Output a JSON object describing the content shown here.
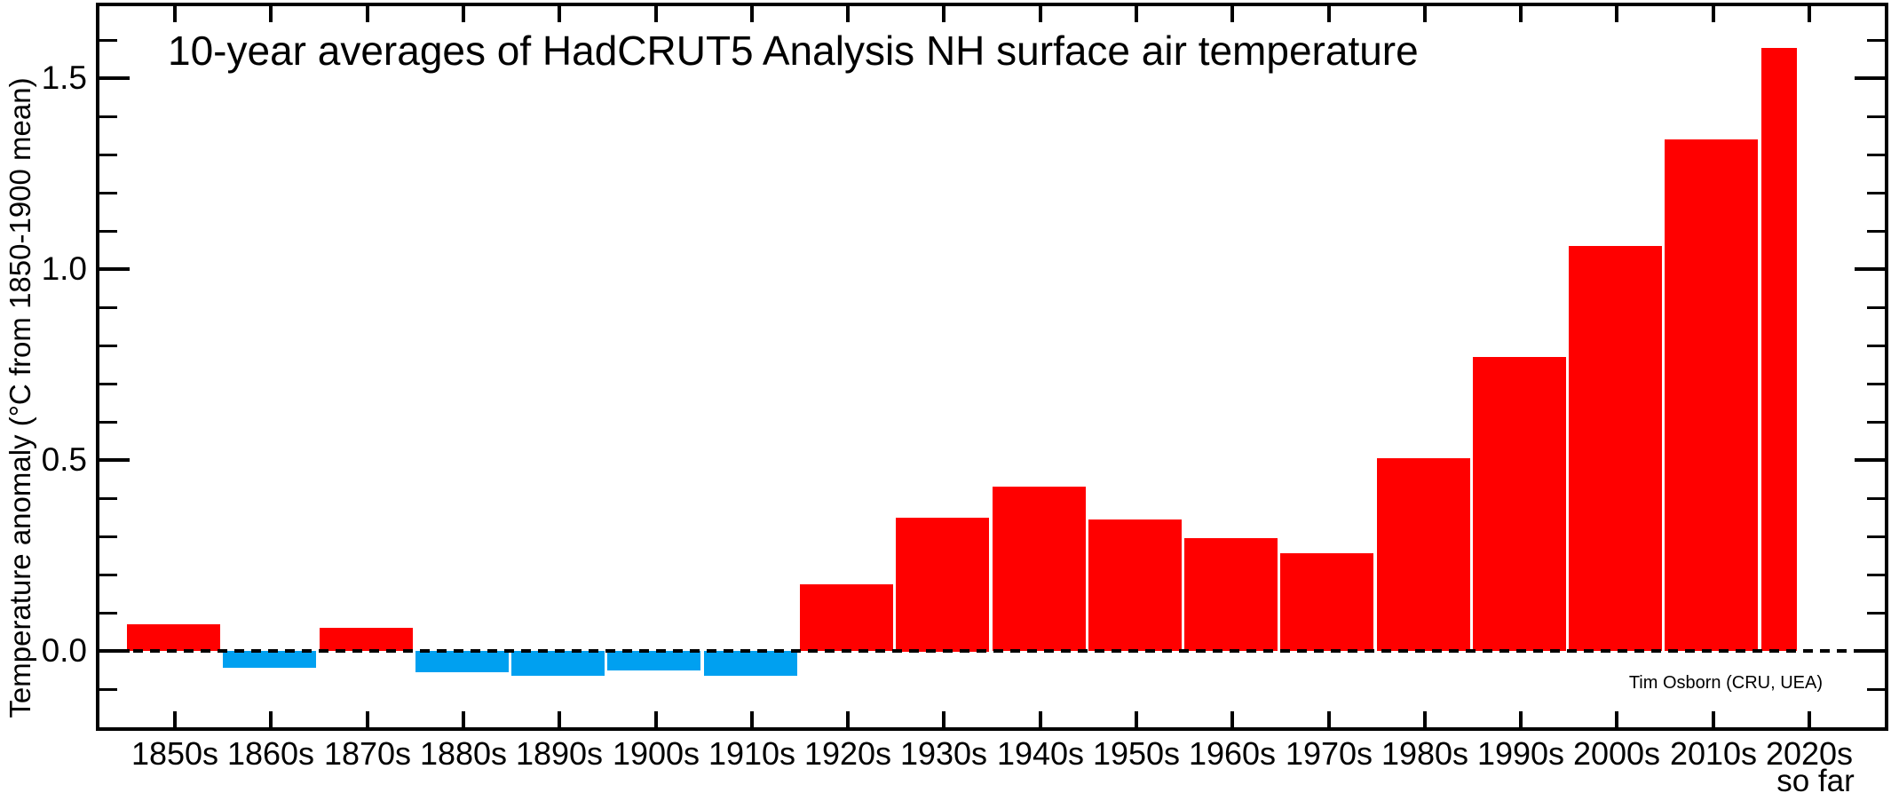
{
  "chart_data": {
    "type": "bar",
    "title": "10-year averages of HadCRUT5 Analysis NH surface air temperature",
    "ylabel": "Temperature anomaly (°C from 1850-1900 mean)",
    "xlabel": "",
    "credit": "Tim Osborn (CRU, UEA)",
    "categories": [
      "1850s",
      "1860s",
      "1870s",
      "1880s",
      "1890s",
      "1900s",
      "1910s",
      "1920s",
      "1930s",
      "1940s",
      "1950s",
      "1960s",
      "1970s",
      "1980s",
      "1990s",
      "2000s",
      "2010s",
      "2020s"
    ],
    "values": [
      0.07,
      -0.045,
      0.06,
      -0.055,
      -0.065,
      -0.05,
      -0.065,
      0.175,
      0.35,
      0.43,
      0.345,
      0.295,
      0.255,
      0.505,
      0.77,
      1.06,
      1.34,
      1.58
    ],
    "last_bar_note": "so far",
    "last_bar_partial": true,
    "ylim": [
      -0.2,
      1.69
    ],
    "yticks_major": [
      {
        "value": 0.0,
        "label": "0.0"
      },
      {
        "value": 0.5,
        "label": "0.5"
      },
      {
        "value": 1.0,
        "label": "1.0"
      },
      {
        "value": 1.5,
        "label": "1.5"
      }
    ],
    "yticks_minor": [
      -0.1,
      0.1,
      0.2,
      0.3,
      0.4,
      0.6,
      0.7,
      0.8,
      0.9,
      1.1,
      1.2,
      1.3,
      1.4,
      1.6
    ],
    "grid": false,
    "legend": false,
    "zero_line_style": "dashed",
    "bar_positive_color": "#ff0000",
    "bar_negative_color": "#00a0f0",
    "axis_color": "#000000",
    "background_color": "#ffffff"
  }
}
